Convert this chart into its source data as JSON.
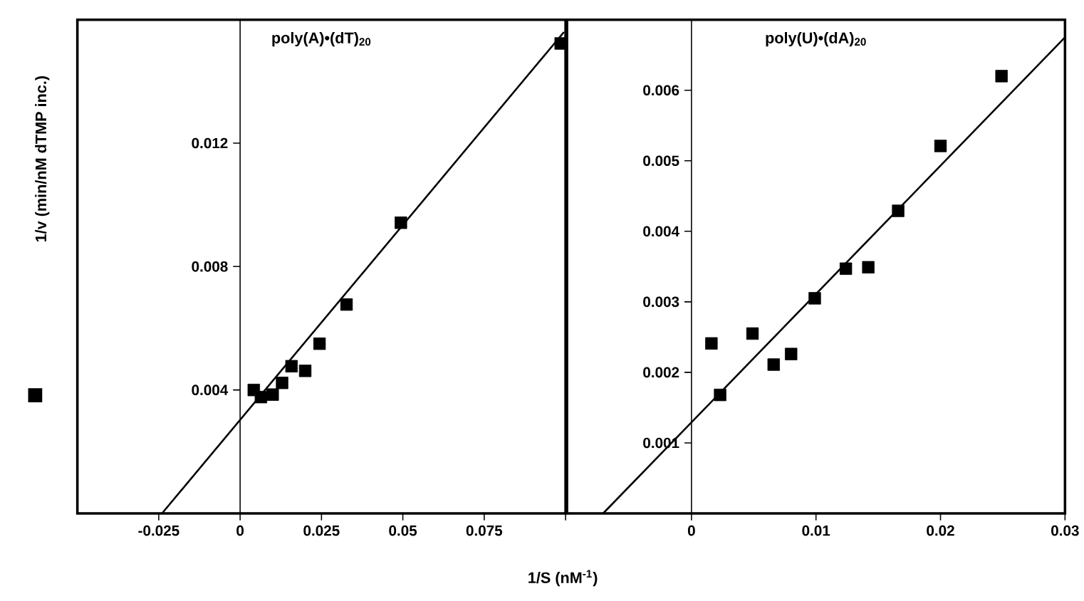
{
  "chart_data": [
    {
      "type": "scatter",
      "title": "poly(A)•(dT)$_{20}$",
      "ylabel": "1/v (min/nM dTMP inc.)",
      "xlabel": "1/S (nM$^{-1}$)",
      "xlim": [
        -0.05,
        0.1
      ],
      "ylim": [
        0,
        0.016
      ],
      "xticks": [
        -0.025,
        0,
        0.025,
        0.05,
        0.075,
        {
          "value": 0.1,
          "label": null
        }
      ],
      "yticks": [
        0.004,
        0.008,
        0.012
      ],
      "series": [
        {
          "marker": "square",
          "color": "#000000",
          "x": [
            0.0042,
            0.0064,
            0.01,
            0.0129,
            0.0158,
            0.02,
            0.0244,
            0.0327,
            0.0494,
            0.0985
          ],
          "values": [
            0.004,
            0.00377,
            0.00385,
            0.00423,
            0.00477,
            0.00462,
            0.0055,
            0.00677,
            0.00942,
            0.01523
          ]
        },
        {
          "type": "line",
          "marker": "none",
          "line_style": "solid",
          "color": "#000000",
          "x": [
            -0.024,
            0.0995
          ],
          "values": [
            0,
            0.0156
          ]
        }
      ]
    },
    {
      "type": "scatter",
      "title": "poly(U)•(dA)$_{20}$",
      "xlim": [
        -0.01,
        0.03
      ],
      "ylim": [
        0,
        0.007
      ],
      "xticks": [
        0,
        0.01,
        0.02,
        0.03
      ],
      "yticks": [
        0.001,
        0.002,
        0.003,
        0.004,
        0.005,
        0.006
      ],
      "series": [
        {
          "marker": "square",
          "color": "#000000",
          "x": [
            0.0016,
            0.0023,
            0.0049,
            0.0066,
            0.008,
            0.0099,
            0.0124,
            0.0142,
            0.0166,
            0.02,
            0.0249
          ],
          "values": [
            0.00241,
            0.00168,
            0.00255,
            0.00211,
            0.00226,
            0.00305,
            0.00347,
            0.00349,
            0.00429,
            0.00521,
            0.0062
          ]
        },
        {
          "type": "line",
          "marker": "none",
          "line_style": "solid",
          "color": "#000000",
          "x": [
            -0.0071,
            0.03
          ],
          "values": [
            0,
            0.00675
          ]
        }
      ]
    }
  ]
}
